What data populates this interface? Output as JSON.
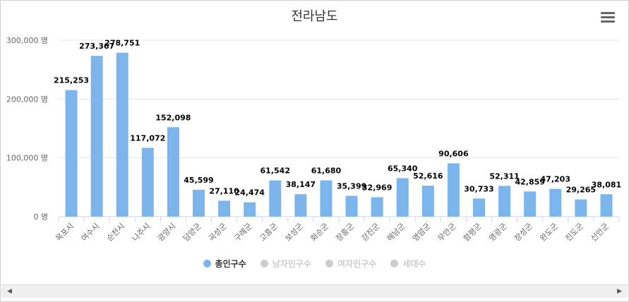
{
  "chart_data": {
    "type": "bar",
    "title": "전라남도",
    "categories": [
      "목포시",
      "여수시",
      "순천시",
      "나주시",
      "광양시",
      "담양군",
      "곡성군",
      "구례군",
      "고흥군",
      "보성군",
      "화순군",
      "장흥군",
      "강진군",
      "해남군",
      "영암군",
      "무안군",
      "함평군",
      "영광군",
      "장성군",
      "완도군",
      "진도군",
      "신안군"
    ],
    "series": [
      {
        "name": "총인구수",
        "visible": true,
        "color": "#7cb5ec",
        "values": [
          215253,
          273367,
          278751,
          117072,
          152098,
          45599,
          27110,
          24474,
          61542,
          38147,
          61680,
          35399,
          32969,
          65340,
          52616,
          90606,
          30733,
          52311,
          42859,
          47203,
          29265,
          38081
        ],
        "labels": [
          "215,253",
          "273,367",
          "278,751",
          "117,072",
          "152,098",
          "45,599",
          "27,110",
          "24,474",
          "61,542",
          "38,147",
          "61,680",
          "35,399",
          "32,969",
          "65,340",
          "52,616",
          "90,606",
          "30,733",
          "52,311",
          "42,859",
          "47,203",
          "29,265",
          "38,081"
        ]
      }
    ],
    "legend": [
      {
        "name": "총인구수",
        "active": true,
        "color": "#7cb5ec"
      },
      {
        "name": "남자인구수",
        "active": false,
        "color": "#cccccc"
      },
      {
        "name": "여자인구수",
        "active": false,
        "color": "#cccccc"
      },
      {
        "name": "세대수",
        "active": false,
        "color": "#cccccc"
      }
    ],
    "yaxis": {
      "ticks": [
        0,
        100000,
        200000,
        300000
      ],
      "tick_labels": [
        "0 명",
        "100,000 명",
        "200,000 명",
        "300,000 명"
      ],
      "ylim": [
        0,
        300000
      ]
    },
    "grid": true,
    "legend_position": "bottom-center"
  },
  "ui": {
    "menu_icon": "hamburger-icon",
    "scroll_left_icon": "◀",
    "scroll_right_icon": "▶"
  }
}
